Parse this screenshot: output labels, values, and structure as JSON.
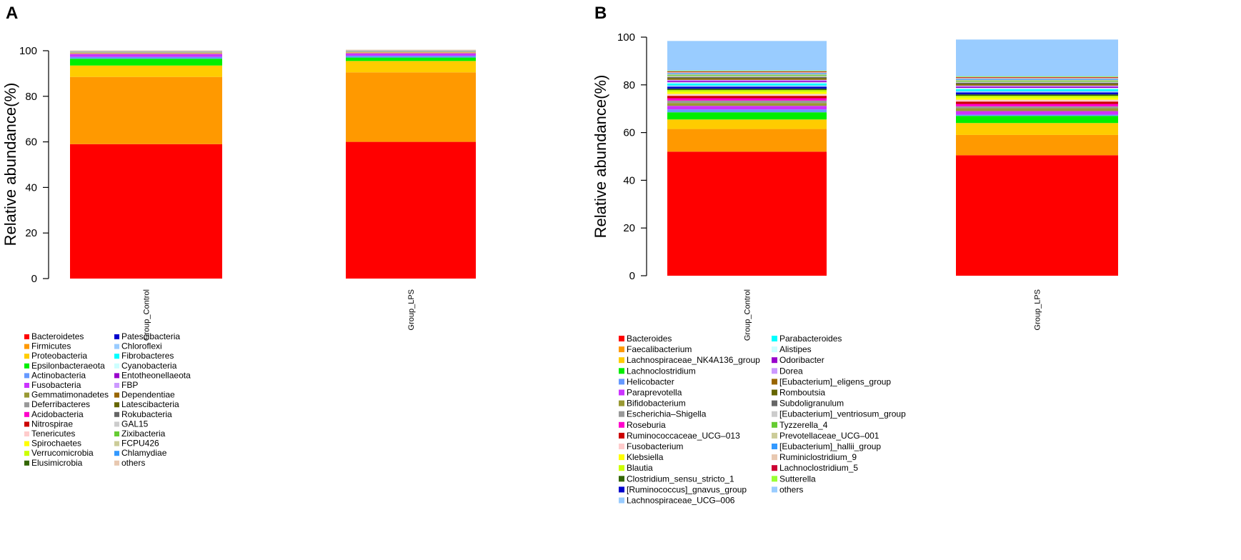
{
  "chart_data": [
    {
      "type": "stacked-bar",
      "panel_label": "A",
      "ylabel": "Relative abundance(%)",
      "ylim": [
        0,
        100
      ],
      "yticks": [
        0,
        20,
        40,
        60,
        80,
        100
      ],
      "categories": [
        "Group_Control",
        "Group_LPS"
      ],
      "series": [
        {
          "name": "Bacteroidetes",
          "color": "#ff0000",
          "values": [
            59,
            60
          ]
        },
        {
          "name": "Firmicutes",
          "color": "#ff9900",
          "values": [
            29.5,
            30.5
          ]
        },
        {
          "name": "Proteobacteria",
          "color": "#ffcc00",
          "values": [
            5,
            5
          ]
        },
        {
          "name": "Epsilonbacteraeota",
          "color": "#00ee00",
          "values": [
            3,
            1.5
          ]
        },
        {
          "name": "Actinobacteria",
          "color": "#6699ff",
          "values": [
            0.8,
            0.8
          ]
        },
        {
          "name": "Fusobacteria",
          "color": "#cc33ff",
          "values": [
            1.2,
            1
          ]
        },
        {
          "name": "Gemmatimonadetes",
          "color": "#999933",
          "values": [
            0.1,
            0.1
          ]
        },
        {
          "name": "Deferribacteres",
          "color": "#999999",
          "values": [
            0.1,
            0.1
          ]
        },
        {
          "name": "Acidobacteria",
          "color": "#ff00cc",
          "values": [
            0.1,
            0.1
          ]
        },
        {
          "name": "Nitrospirae",
          "color": "#cc0000",
          "values": [
            0.1,
            0.1
          ]
        },
        {
          "name": "Tenericutes",
          "color": "#ffcccc",
          "values": [
            0.1,
            0.1
          ]
        },
        {
          "name": "Spirochaetes",
          "color": "#ffff00",
          "values": [
            0.1,
            0.1
          ]
        },
        {
          "name": "Verrucomicrobia",
          "color": "#ccff00",
          "values": [
            0.1,
            0.1
          ]
        },
        {
          "name": "Elusimicrobia",
          "color": "#336600",
          "values": [
            0.05,
            0.05
          ]
        },
        {
          "name": "Patescibacteria",
          "color": "#0000cc",
          "values": [
            0.05,
            0.05
          ]
        },
        {
          "name": "Chloroflexi",
          "color": "#99ccff",
          "values": [
            0.05,
            0.05
          ]
        },
        {
          "name": "Fibrobacteres",
          "color": "#00ffff",
          "values": [
            0.05,
            0.05
          ]
        },
        {
          "name": "Cyanobacteria",
          "color": "#ccffff",
          "values": [
            0.05,
            0.05
          ]
        },
        {
          "name": "Entotheonellaeota",
          "color": "#9900cc",
          "values": [
            0.05,
            0.05
          ]
        },
        {
          "name": "FBP",
          "color": "#cc99ff",
          "values": [
            0.05,
            0.05
          ]
        },
        {
          "name": "Dependentiae",
          "color": "#996600",
          "values": [
            0.05,
            0.05
          ]
        },
        {
          "name": "Latescibacteria",
          "color": "#666600",
          "values": [
            0.05,
            0.05
          ]
        },
        {
          "name": "Rokubacteria",
          "color": "#666666",
          "values": [
            0.05,
            0.05
          ]
        },
        {
          "name": "GAL15",
          "color": "#cccccc",
          "values": [
            0.05,
            0.05
          ]
        },
        {
          "name": "Zixibacteria",
          "color": "#66cc33",
          "values": [
            0.05,
            0.05
          ]
        },
        {
          "name": "FCPU426",
          "color": "#cccc99",
          "values": [
            0.05,
            0.05
          ]
        },
        {
          "name": "Chlamydiae",
          "color": "#3399ff",
          "values": [
            0.05,
            0.05
          ]
        },
        {
          "name": "others",
          "color": "#e8c8b0",
          "values": [
            0.25,
            0.25
          ]
        }
      ]
    },
    {
      "type": "stacked-bar",
      "panel_label": "B",
      "ylabel": "Relative abundance(%)",
      "ylim": [
        0,
        100
      ],
      "yticks": [
        0,
        20,
        40,
        60,
        80,
        100
      ],
      "categories": [
        "Group_Control",
        "Group_LPS"
      ],
      "series": [
        {
          "name": "Bacteroides",
          "color": "#ff0000",
          "values": [
            52,
            50.5
          ]
        },
        {
          "name": "Faecalibacterium",
          "color": "#ff9900",
          "values": [
            9.5,
            8.5
          ]
        },
        {
          "name": "Lachnospiraceae_NK4A136_group",
          "color": "#ffcc00",
          "values": [
            4,
            5
          ]
        },
        {
          "name": "Lachnoclostridium",
          "color": "#00ee00",
          "values": [
            3,
            3
          ]
        },
        {
          "name": "Helicobacter",
          "color": "#6699ff",
          "values": [
            1.2,
            0.5
          ]
        },
        {
          "name": "Paraprevotella",
          "color": "#cc33ff",
          "values": [
            1.5,
            1.5
          ]
        },
        {
          "name": "Bifidobacterium",
          "color": "#999933",
          "values": [
            1.2,
            1.2
          ]
        },
        {
          "name": "Escherichia–Shigella",
          "color": "#999999",
          "values": [
            1,
            0.8
          ]
        },
        {
          "name": "Roseburia",
          "color": "#ff00cc",
          "values": [
            1,
            1
          ]
        },
        {
          "name": "Ruminococcaceae_UCG–013",
          "color": "#cc0000",
          "values": [
            1,
            1
          ]
        },
        {
          "name": "Fusobacterium",
          "color": "#ffcccc",
          "values": [
            0.8,
            0.8
          ]
        },
        {
          "name": "Klebsiella",
          "color": "#ffff00",
          "values": [
            0.8,
            0.8
          ]
        },
        {
          "name": "Blautia",
          "color": "#ccff00",
          "values": [
            0.8,
            0.8
          ]
        },
        {
          "name": "Clostridium_sensu_stricto_1",
          "color": "#336600",
          "values": [
            0.6,
            0.6
          ]
        },
        {
          "name": "[Ruminococcus]_gnavus_group",
          "color": "#0000cc",
          "values": [
            0.8,
            0.8
          ]
        },
        {
          "name": "Lachnospiraceae_UCG–006",
          "color": "#99ccff",
          "values": [
            0.6,
            0.6
          ]
        },
        {
          "name": "Parabacteroides",
          "color": "#00ffff",
          "values": [
            0.8,
            0.8
          ]
        },
        {
          "name": "Alistipes",
          "color": "#ccffff",
          "values": [
            0.5,
            0.5
          ]
        },
        {
          "name": "Odoribacter",
          "color": "#9900cc",
          "values": [
            0.5,
            0.5
          ]
        },
        {
          "name": "Dorea",
          "color": "#cc99ff",
          "values": [
            0.5,
            0.5
          ]
        },
        {
          "name": "[Eubacterium]_eligens_group",
          "color": "#996600",
          "values": [
            0.4,
            0.4
          ]
        },
        {
          "name": "Romboutsia",
          "color": "#666600",
          "values": [
            0.4,
            0.4
          ]
        },
        {
          "name": "Subdoligranulum",
          "color": "#666666",
          "values": [
            0.4,
            0.4
          ]
        },
        {
          "name": "[Eubacterium]_ventriosum_group",
          "color": "#cccccc",
          "values": [
            0.4,
            0.4
          ]
        },
        {
          "name": "Tyzzerella_4",
          "color": "#66cc33",
          "values": [
            0.4,
            0.4
          ]
        },
        {
          "name": "Prevotellaceae_UCG–001",
          "color": "#cccc99",
          "values": [
            0.4,
            0.4
          ]
        },
        {
          "name": "[Eubacterium]_hallii_group",
          "color": "#3399ff",
          "values": [
            0.4,
            0.4
          ]
        },
        {
          "name": "Ruminiclostridium_9",
          "color": "#e8c8b0",
          "values": [
            0.4,
            0.4
          ]
        },
        {
          "name": "Lachnoclostridium_5",
          "color": "#cc0033",
          "values": [
            0.3,
            0.3
          ]
        },
        {
          "name": "Sutterella",
          "color": "#99ff33",
          "values": [
            0.3,
            0.3
          ]
        },
        {
          "name": "others",
          "color": "#99ccff",
          "values": [
            12.5,
            15.5
          ]
        }
      ]
    }
  ]
}
